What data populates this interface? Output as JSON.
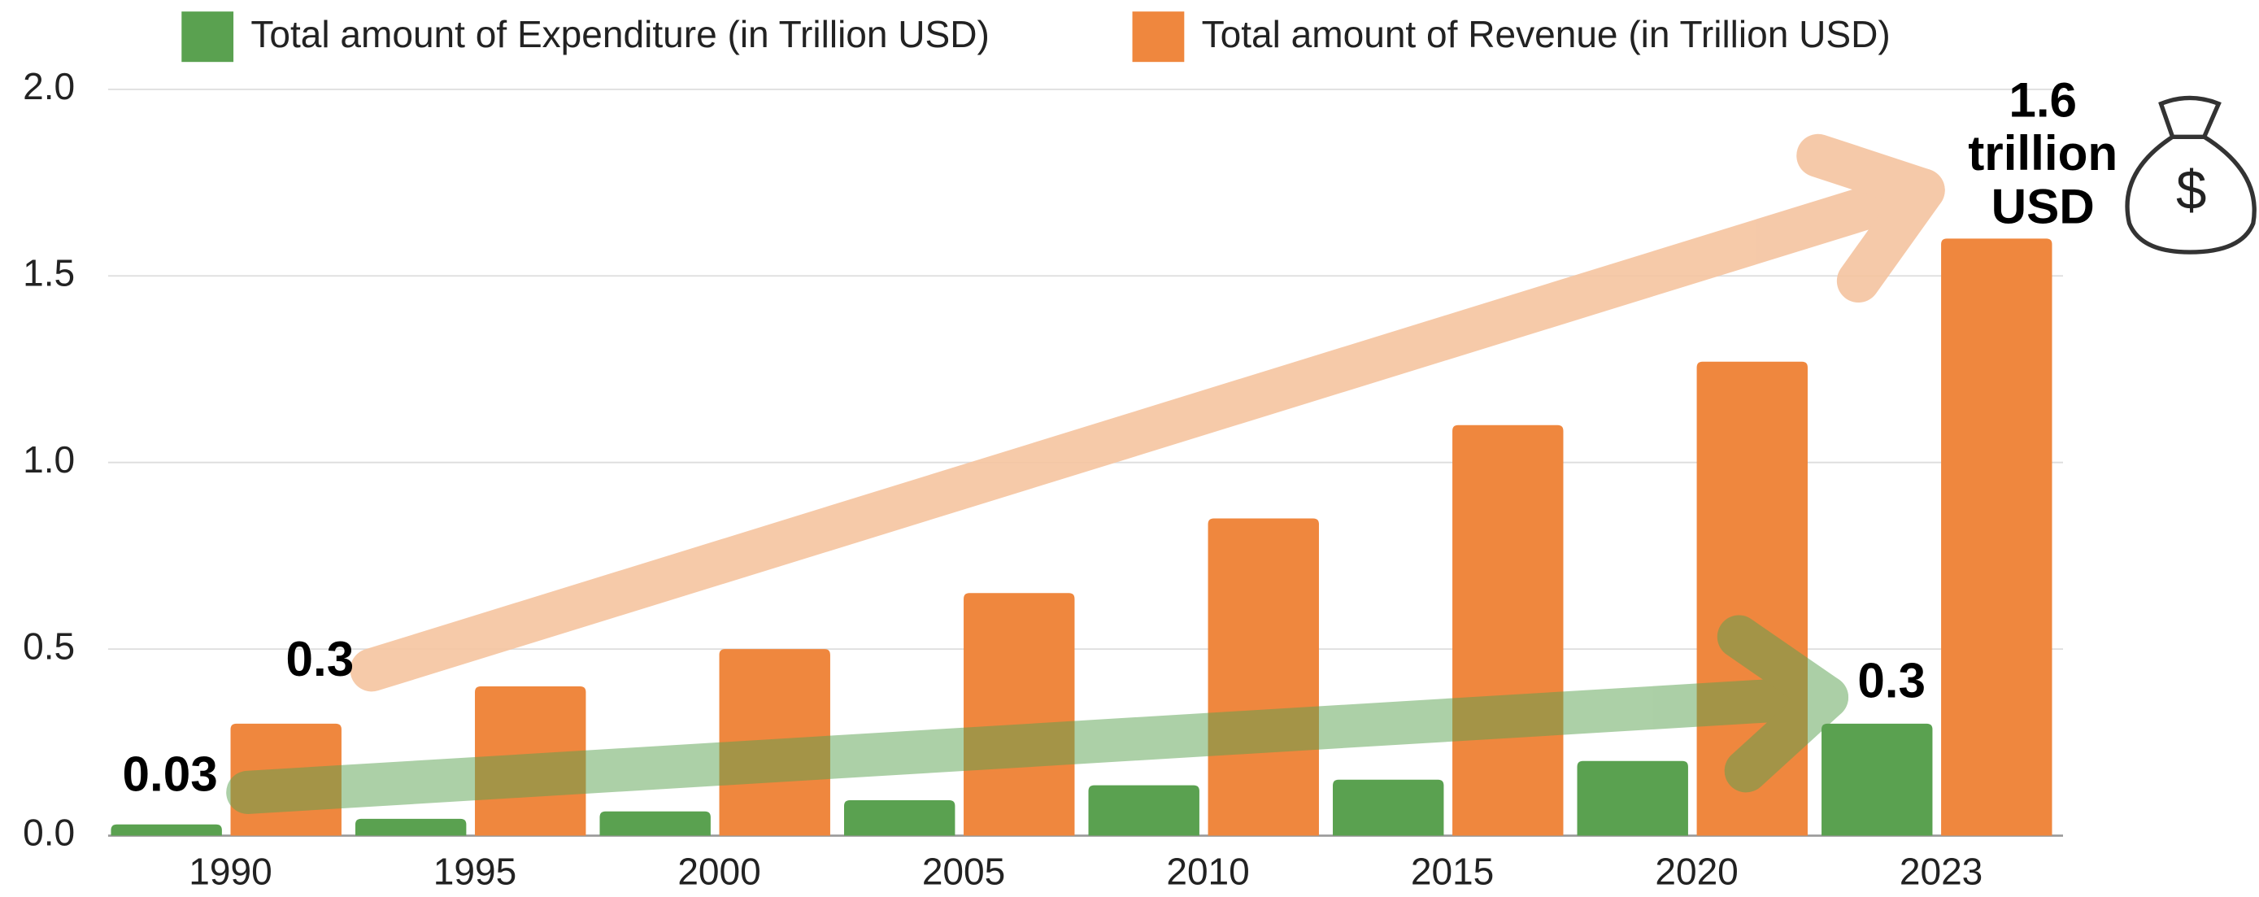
{
  "chart_data": {
    "type": "bar",
    "categories": [
      "1990",
      "1995",
      "2000",
      "2005",
      "2010",
      "2015",
      "2020",
      "2023"
    ],
    "series": [
      {
        "name": "Total amount of Expenditure (in Trillion USD)",
        "color": "#5aa150",
        "values": [
          0.03,
          0.045,
          0.065,
          0.095,
          0.135,
          0.15,
          0.2,
          0.3
        ]
      },
      {
        "name": "Total amount of Revenue (in Trillion USD)",
        "color": "#ef873e",
        "values": [
          0.3,
          0.4,
          0.5,
          0.65,
          0.85,
          1.1,
          1.27,
          1.6
        ]
      }
    ],
    "ylim": [
      0,
      2.0
    ],
    "yticks": [
      {
        "value": 0,
        "label": "0.0"
      },
      0.5,
      {
        "value": 1,
        "label": "1.0"
      },
      1.5,
      {
        "value": 2,
        "label": "2.0"
      }
    ],
    "grid": true,
    "legend": "top",
    "annotations": [
      {
        "lines": [
          "0.03"
        ]
      },
      {
        "lines": [
          "0.3"
        ]
      },
      {
        "lines": [
          "0.3"
        ]
      },
      {
        "lines": [
          "1.6",
          "trillion",
          "USD"
        ]
      }
    ]
  }
}
